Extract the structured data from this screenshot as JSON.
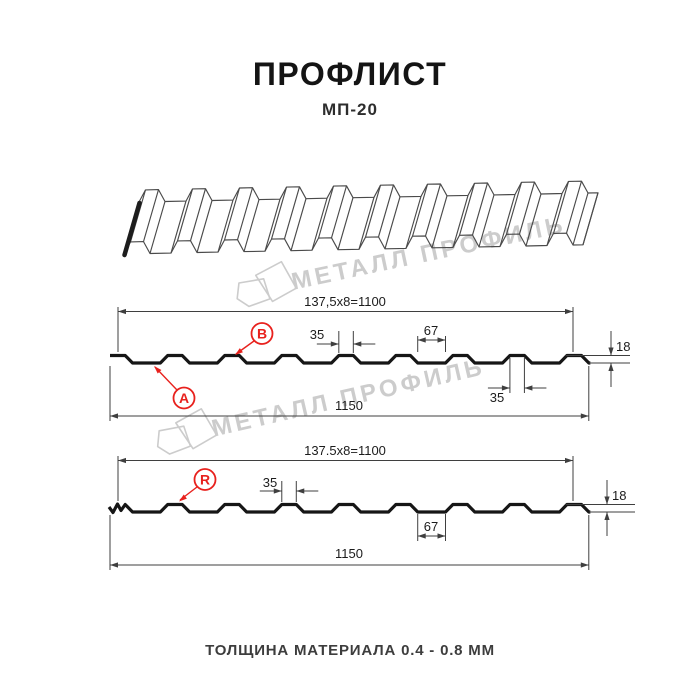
{
  "title": "ПРОФЛИСТ",
  "subtitle": "МП-20",
  "footer_note": "ТОЛЩИНА МАТЕРИАЛА 0.4 - 0.8 ММ",
  "watermark": {
    "text": "МЕТАЛЛ ПРОФИЛЬ"
  },
  "colors": {
    "accent_red": "#e8211d",
    "line_black": "#161616",
    "dim_gray": "#3f3f3f",
    "watermark_gray": "#cccccc"
  },
  "drawing_top": {
    "top_dim": "137,5x8=1100",
    "crest_dim": "35",
    "valley_dim": "67",
    "height_dim": "18",
    "bottom_crest_dim": "35",
    "overall_dim": "1150",
    "label_a": "A",
    "label_b": "B"
  },
  "drawing_bottom": {
    "top_dim": "137.5x8=1100",
    "crest_dim": "35",
    "valley_dim": "67",
    "height_dim": "18",
    "overall_dim": "1150",
    "label_r": "R"
  },
  "geometry": {
    "pitch_mm": 137.5,
    "pitch_count": 8,
    "coverage_mm": 1100,
    "overall_mm": 1150,
    "crest_mm": 35,
    "valley_mm": 67,
    "height_mm": 18
  }
}
